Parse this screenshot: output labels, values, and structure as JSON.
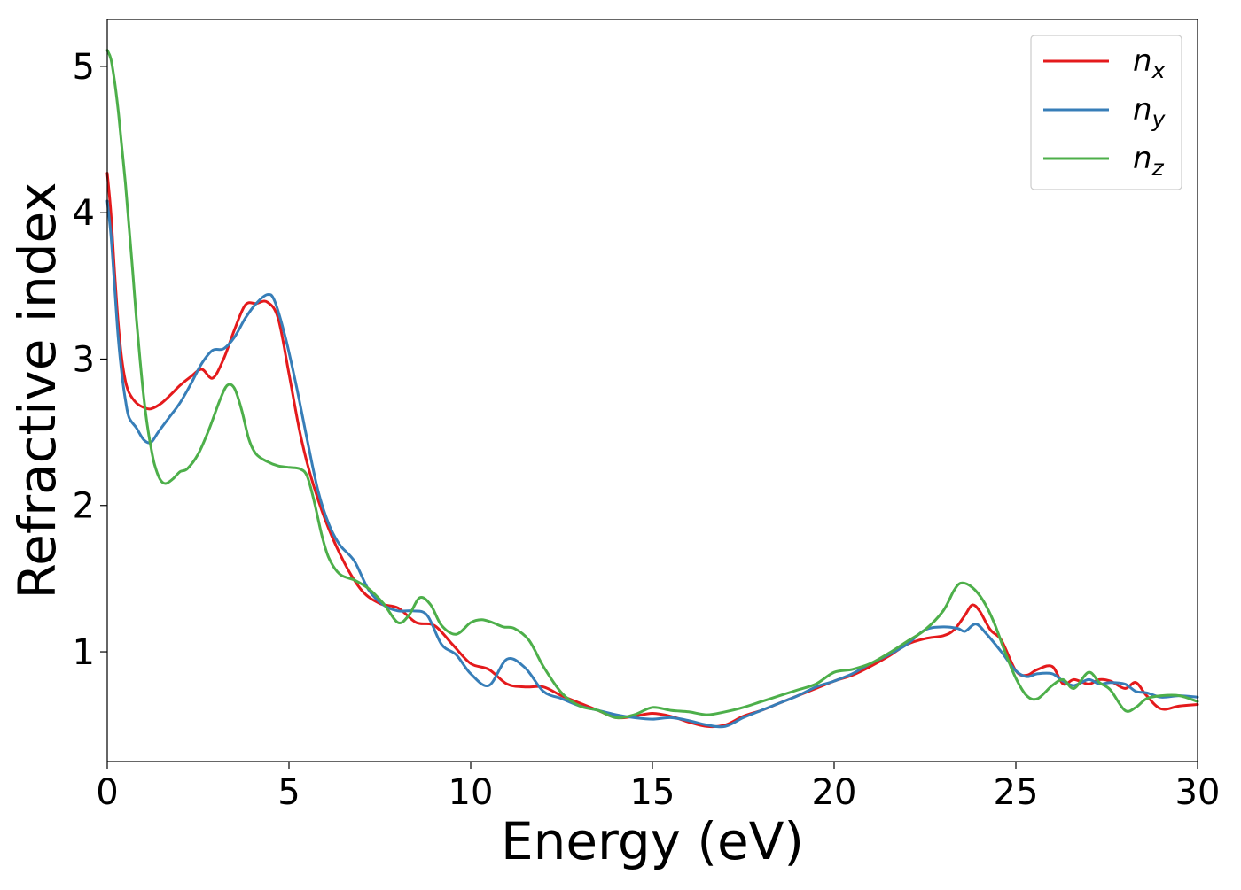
{
  "chart_data": {
    "type": "line",
    "title": "",
    "xlabel": "Energy (eV)",
    "ylabel": "Refractive index",
    "xlim": [
      0,
      30
    ],
    "ylim": [
      0.25,
      5.32
    ],
    "xticks": [
      0,
      5,
      10,
      15,
      20,
      25,
      30
    ],
    "yticks": [
      1,
      2,
      3,
      4,
      5
    ],
    "xtick_labels": [
      "0",
      "5",
      "10",
      "15",
      "20",
      "25",
      "30"
    ],
    "ytick_labels": [
      "1",
      "2",
      "3",
      "4",
      "5"
    ],
    "grid": false,
    "legend_position": "top-right",
    "series": [
      {
        "name": "n",
        "subscript": "x",
        "color": "#e41a1c",
        "x": [
          0,
          0.1,
          0.2,
          0.3,
          0.4,
          0.5,
          0.6,
          0.8,
          1.0,
          1.2,
          1.5,
          1.8,
          2.0,
          2.3,
          2.6,
          2.9,
          3.2,
          3.5,
          3.8,
          4.1,
          4.4,
          4.7,
          5.0,
          5.3,
          5.6,
          6.0,
          6.5,
          7.0,
          7.5,
          8.0,
          8.5,
          9.0,
          9.5,
          10.0,
          10.5,
          11.0,
          11.5,
          12.0,
          12.5,
          13.0,
          13.5,
          14.0,
          14.5,
          15.0,
          15.5,
          16.0,
          16.5,
          17.0,
          17.5,
          18.0,
          18.5,
          19.0,
          19.5,
          20.0,
          20.5,
          21.0,
          21.5,
          22.0,
          22.5,
          23.0,
          23.3,
          23.6,
          23.8,
          24.0,
          24.3,
          24.6,
          25.0,
          25.3,
          25.6,
          26.0,
          26.3,
          26.6,
          27.0,
          27.3,
          27.6,
          28.0,
          28.3,
          28.6,
          29.0,
          29.5,
          30.0
        ],
        "y": [
          4.27,
          4.0,
          3.6,
          3.25,
          3.0,
          2.85,
          2.77,
          2.7,
          2.67,
          2.66,
          2.7,
          2.77,
          2.82,
          2.88,
          2.93,
          2.87,
          3.0,
          3.2,
          3.37,
          3.38,
          3.39,
          3.28,
          2.9,
          2.5,
          2.2,
          1.9,
          1.62,
          1.42,
          1.33,
          1.3,
          1.2,
          1.18,
          1.05,
          0.92,
          0.88,
          0.78,
          0.76,
          0.76,
          0.7,
          0.65,
          0.6,
          0.55,
          0.56,
          0.58,
          0.56,
          0.52,
          0.49,
          0.5,
          0.56,
          0.6,
          0.65,
          0.7,
          0.75,
          0.8,
          0.84,
          0.9,
          0.97,
          1.05,
          1.09,
          1.11,
          1.15,
          1.25,
          1.32,
          1.28,
          1.15,
          1.08,
          0.87,
          0.84,
          0.88,
          0.9,
          0.78,
          0.81,
          0.78,
          0.81,
          0.8,
          0.75,
          0.79,
          0.7,
          0.61,
          0.63,
          0.64
        ]
      },
      {
        "name": "n",
        "subscript": "y",
        "color": "#377eb8",
        "x": [
          0,
          0.1,
          0.2,
          0.3,
          0.4,
          0.5,
          0.6,
          0.8,
          1.0,
          1.2,
          1.4,
          1.7,
          2.0,
          2.3,
          2.6,
          2.9,
          3.2,
          3.5,
          3.8,
          4.1,
          4.4,
          4.6,
          4.9,
          5.2,
          5.5,
          5.8,
          6.1,
          6.4,
          6.8,
          7.2,
          7.6,
          8.0,
          8.4,
          8.8,
          9.2,
          9.6,
          10.0,
          10.5,
          11.0,
          11.5,
          12.0,
          12.5,
          13.0,
          13.5,
          14.0,
          14.5,
          15.0,
          15.5,
          16.0,
          16.5,
          17.0,
          17.5,
          18.0,
          18.5,
          19.0,
          19.5,
          20.0,
          20.5,
          21.0,
          21.5,
          22.0,
          22.5,
          23.0,
          23.4,
          23.6,
          23.9,
          24.2,
          24.6,
          25.0,
          25.3,
          25.6,
          26.0,
          26.3,
          26.6,
          27.0,
          27.3,
          27.6,
          28.0,
          28.3,
          28.6,
          29.0,
          29.5,
          30.0
        ],
        "y": [
          4.08,
          3.85,
          3.5,
          3.15,
          2.9,
          2.72,
          2.6,
          2.53,
          2.45,
          2.43,
          2.5,
          2.6,
          2.7,
          2.83,
          2.97,
          3.06,
          3.07,
          3.15,
          3.28,
          3.38,
          3.44,
          3.4,
          3.15,
          2.82,
          2.45,
          2.1,
          1.87,
          1.73,
          1.62,
          1.42,
          1.32,
          1.28,
          1.28,
          1.25,
          1.05,
          0.98,
          0.85,
          0.77,
          0.95,
          0.89,
          0.73,
          0.68,
          0.63,
          0.6,
          0.57,
          0.55,
          0.54,
          0.55,
          0.53,
          0.5,
          0.49,
          0.55,
          0.6,
          0.65,
          0.7,
          0.76,
          0.8,
          0.85,
          0.92,
          0.98,
          1.05,
          1.15,
          1.17,
          1.16,
          1.14,
          1.19,
          1.12,
          1.0,
          0.87,
          0.83,
          0.85,
          0.85,
          0.8,
          0.77,
          0.81,
          0.78,
          0.79,
          0.78,
          0.73,
          0.72,
          0.69,
          0.7,
          0.69
        ]
      },
      {
        "name": "n",
        "subscript": "z",
        "color": "#4daf4a",
        "x": [
          0,
          0.1,
          0.2,
          0.3,
          0.4,
          0.5,
          0.6,
          0.7,
          0.8,
          0.9,
          1.0,
          1.1,
          1.2,
          1.3,
          1.45,
          1.6,
          1.8,
          2.0,
          2.2,
          2.5,
          2.8,
          3.1,
          3.3,
          3.5,
          3.7,
          3.9,
          4.1,
          4.4,
          4.7,
          5.0,
          5.3,
          5.5,
          5.7,
          5.9,
          6.1,
          6.4,
          6.8,
          7.2,
          7.6,
          8.0,
          8.3,
          8.6,
          8.9,
          9.2,
          9.6,
          10.0,
          10.3,
          10.6,
          10.9,
          11.2,
          11.6,
          12.0,
          12.5,
          13.0,
          13.5,
          14.0,
          14.5,
          15.0,
          15.5,
          16.0,
          16.5,
          17.0,
          17.5,
          18.0,
          18.5,
          19.0,
          19.5,
          20.0,
          20.5,
          21.0,
          21.5,
          22.0,
          22.5,
          23.0,
          23.3,
          23.5,
          23.8,
          24.1,
          24.4,
          24.7,
          25.0,
          25.3,
          25.6,
          26.0,
          26.3,
          26.6,
          27.0,
          27.3,
          27.6,
          28.0,
          28.3,
          28.6,
          29.0,
          29.5,
          30.0
        ],
        "y": [
          5.11,
          5.05,
          4.9,
          4.7,
          4.45,
          4.2,
          3.9,
          3.6,
          3.28,
          3.0,
          2.75,
          2.55,
          2.4,
          2.28,
          2.18,
          2.15,
          2.18,
          2.23,
          2.25,
          2.35,
          2.52,
          2.72,
          2.82,
          2.8,
          2.65,
          2.45,
          2.35,
          2.3,
          2.27,
          2.26,
          2.25,
          2.2,
          2.02,
          1.8,
          1.64,
          1.53,
          1.49,
          1.43,
          1.33,
          1.2,
          1.25,
          1.37,
          1.32,
          1.18,
          1.12,
          1.2,
          1.22,
          1.2,
          1.17,
          1.16,
          1.08,
          0.9,
          0.72,
          0.63,
          0.6,
          0.55,
          0.57,
          0.62,
          0.6,
          0.59,
          0.57,
          0.59,
          0.62,
          0.66,
          0.7,
          0.74,
          0.78,
          0.86,
          0.88,
          0.92,
          0.99,
          1.07,
          1.15,
          1.28,
          1.42,
          1.47,
          1.44,
          1.35,
          1.2,
          1.0,
          0.82,
          0.7,
          0.68,
          0.77,
          0.81,
          0.75,
          0.86,
          0.79,
          0.74,
          0.6,
          0.62,
          0.68,
          0.7,
          0.7,
          0.66
        ]
      }
    ]
  }
}
